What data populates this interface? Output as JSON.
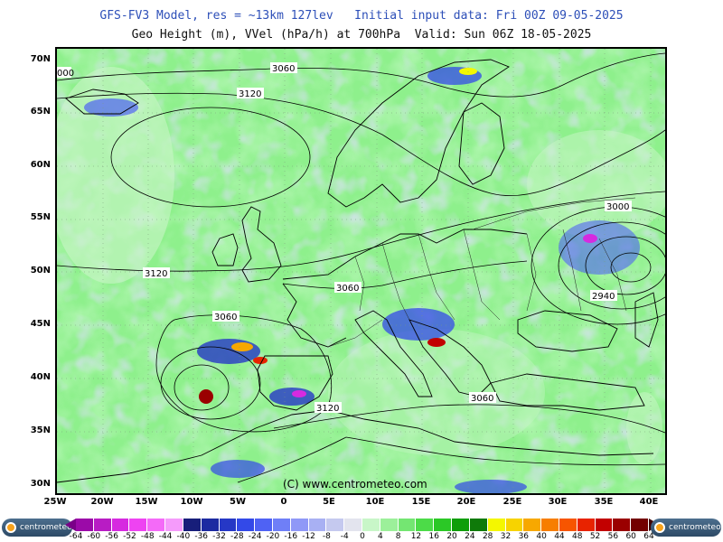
{
  "header": {
    "line1": "GFS-FV3 Model, res = ~13km 127lev   Initial input data: Fri 00Z 09-05-2025",
    "line2": "Geo Height (m), VVel (hPa/h) at 700hPa  Valid: Sun 06Z 18-05-2025"
  },
  "latitude_labels": [
    "70N",
    "65N",
    "60N",
    "55N",
    "50N",
    "45N",
    "40N",
    "35N",
    "30N"
  ],
  "longitude_labels": [
    "25W",
    "20W",
    "15W",
    "10W",
    "5W",
    "0",
    "5E",
    "10E",
    "15E",
    "20E",
    "25E",
    "30E",
    "35E",
    "40E"
  ],
  "contour_labels": [
    "3060",
    "3120",
    "3000",
    "3120",
    "3060",
    "2940",
    "3060",
    "3060",
    "3120",
    "000"
  ],
  "copyright": "(C) www.centrometeo.com",
  "colorbar": {
    "labels": [
      "-64",
      "-60",
      "-56",
      "-52",
      "-48",
      "-44",
      "-40",
      "-36",
      "-32",
      "-28",
      "-24",
      "-20",
      "-16",
      "-12",
      "-8",
      "-4",
      "0",
      "4",
      "8",
      "12",
      "16",
      "20",
      "24",
      "28",
      "32",
      "36",
      "40",
      "44",
      "48",
      "52",
      "56",
      "60",
      "64"
    ],
    "colors": [
      "#9b0aa8",
      "#b81cc4",
      "#d62ae0",
      "#ee43f2",
      "#f46af8",
      "#f59bfb",
      "#171e7a",
      "#1c2aa1",
      "#2638c6",
      "#3349e8",
      "#4f62f4",
      "#6f7ff7",
      "#8f98f7",
      "#a8b0f3",
      "#c5c9ef",
      "#e3e4ee",
      "#c8f6c8",
      "#9cf09a",
      "#74e672",
      "#4cdb48",
      "#2bc826",
      "#0f9e0a",
      "#0f7a0a",
      "#f4f700",
      "#f7d300",
      "#f7a800",
      "#f77e00",
      "#f75500",
      "#e82300",
      "#c20000",
      "#9a0000",
      "#730000"
    ],
    "under_color": "#7a0088",
    "over_color": "#3d0000"
  },
  "logos": {
    "left": "centrometeo",
    "right": "centrometeo"
  }
}
